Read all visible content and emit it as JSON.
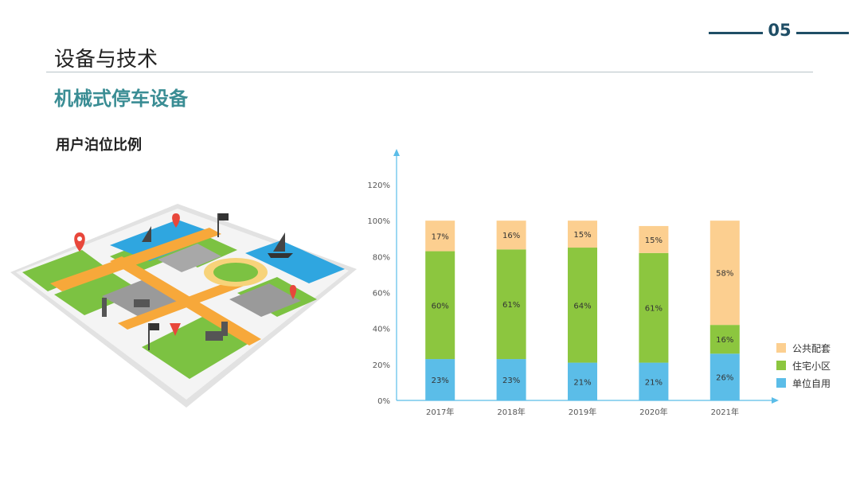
{
  "page_number": "05",
  "title": "设备与技术",
  "subtitle": "机械式停车设备",
  "section_label": "用户泊位比例",
  "illustration": {
    "icon": "city-parking-map-icon"
  },
  "colors": {
    "unit": "#5bbde8",
    "residential": "#8cc63f",
    "public": "#fccf90",
    "accent": "#1f4e66",
    "axis": "#5bbde8"
  },
  "chart_data": {
    "type": "bar",
    "stacked": true,
    "categories": [
      "2017年",
      "2018年",
      "2019年",
      "2020年",
      "2021年"
    ],
    "series": [
      {
        "name": "单位自用",
        "values": [
          23,
          23,
          21,
          21,
          26
        ],
        "labels": [
          "23%",
          "23%",
          "21%",
          "21%",
          "26%"
        ],
        "color": "#5bbde8"
      },
      {
        "name": "住宅小区",
        "values": [
          60,
          61,
          64,
          61,
          16
        ],
        "labels": [
          "60%",
          "61%",
          "64%",
          "61%",
          "16%"
        ],
        "color": "#8cc63f"
      },
      {
        "name": "公共配套",
        "values": [
          17,
          16,
          15,
          15,
          58
        ],
        "labels": [
          "17%",
          "16%",
          "15%",
          "15%",
          "58%"
        ],
        "color": "#fccf90"
      }
    ],
    "yticks": [
      "0%",
      "20%",
      "40%",
      "60%",
      "80%",
      "100%",
      "120%"
    ],
    "ylim": [
      0,
      120
    ],
    "legend_position": "right",
    "legend_order": [
      2,
      1,
      0
    ]
  }
}
